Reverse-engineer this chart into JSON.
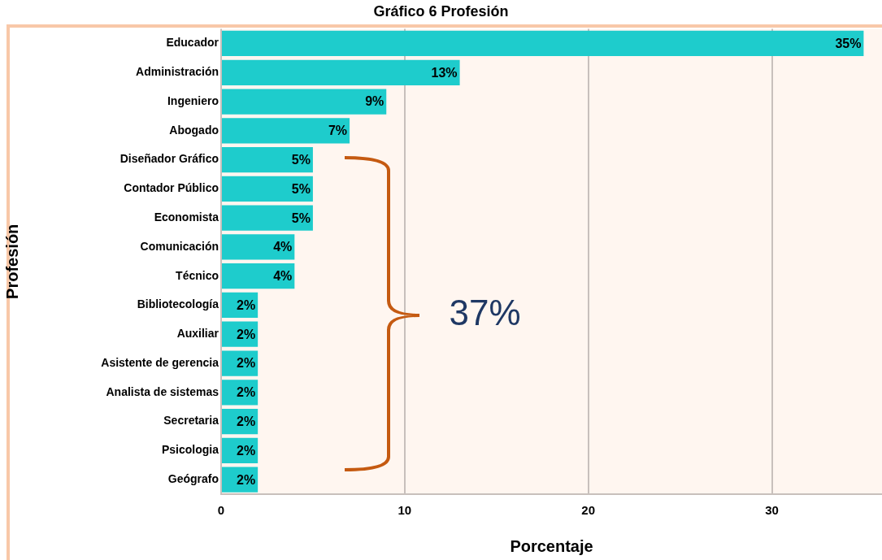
{
  "chart_data": {
    "type": "bar",
    "orientation": "horizontal",
    "title": "Gráfico 6 Profesión",
    "xlabel": "Porcentaje",
    "ylabel": "Profesión",
    "categories": [
      "Educador",
      "Administración",
      "Ingeniero",
      "Abogado",
      "Diseñador Gráfico",
      "Contador Público",
      "Economista",
      "Comunicación",
      "Técnico",
      "Bibliotecología",
      "Auxiliar",
      "Asistente de gerencia",
      "Analista de sistemas",
      "Secretaria",
      "Psicologia",
      "Geógrafo"
    ],
    "values": [
      35,
      13,
      9,
      7,
      5,
      5,
      5,
      4,
      4,
      2,
      2,
      2,
      2,
      2,
      2,
      2
    ],
    "value_labels": [
      "35%",
      "13%",
      "9%",
      "7%",
      "5%",
      "5%",
      "5%",
      "4%",
      "4%",
      "2%",
      "2%",
      "2%",
      "2%",
      "2%",
      "2%",
      "2%"
    ],
    "color": "#1ecccc",
    "xlim": [
      0,
      36
    ],
    "xticks": [
      0,
      10,
      20,
      30
    ],
    "grid": "x",
    "legend": false,
    "annotations": [
      "37%"
    ]
  }
}
